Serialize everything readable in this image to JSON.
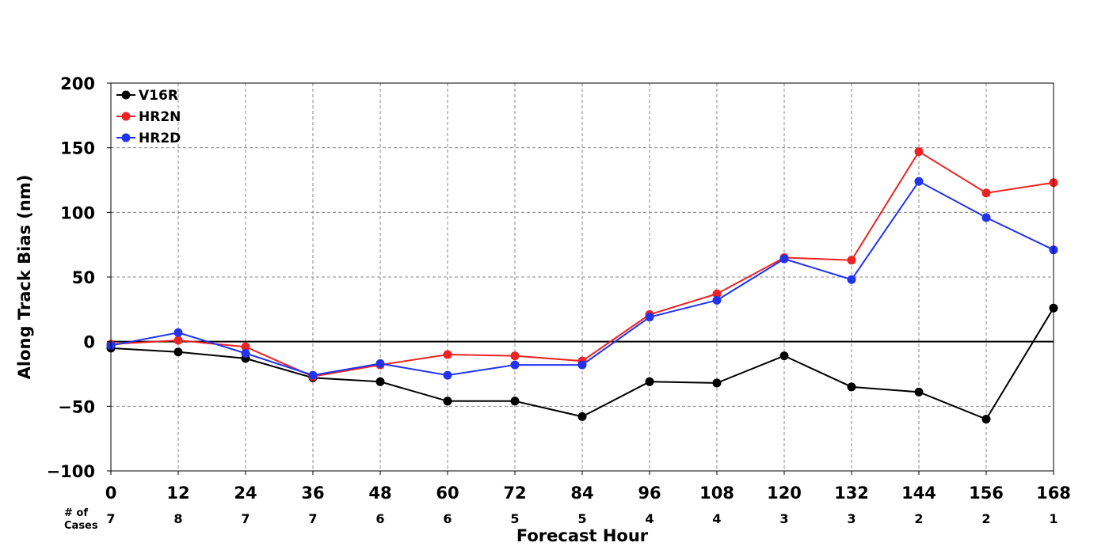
{
  "chart_data": {
    "type": "line",
    "title": "",
    "xlabel": "Forecast Hour",
    "ylabel": "Along Track Bias (nm)",
    "x": [
      0,
      12,
      24,
      36,
      48,
      60,
      72,
      84,
      96,
      108,
      120,
      132,
      144,
      156,
      168
    ],
    "x_tick_labels": [
      "0",
      "12",
      "24",
      "36",
      "48",
      "60",
      "72",
      "84",
      "96",
      "108",
      "120",
      "132",
      "144",
      "156",
      "168"
    ],
    "xlim": [
      0,
      168
    ],
    "ylim": [
      -100,
      200
    ],
    "y_ticks": [
      -100,
      -50,
      0,
      50,
      100,
      150,
      200
    ],
    "y_tick_labels": [
      "−100",
      "−50",
      "0",
      "50",
      "100",
      "150",
      "200"
    ],
    "grid": true,
    "legend_position": "top-left",
    "cases_label": [
      "# of",
      "Cases"
    ],
    "cases": [
      "7",
      "8",
      "7",
      "7",
      "6",
      "6",
      "5",
      "5",
      "4",
      "4",
      "3",
      "3",
      "2",
      "2",
      "1"
    ],
    "series": [
      {
        "name": "V16R",
        "color": "#000000",
        "values": [
          -5,
          -8,
          -13,
          -28,
          -31,
          -46,
          -46,
          -58,
          -31,
          -32,
          -11,
          -35,
          -39,
          -60,
          26
        ]
      },
      {
        "name": "HR2N",
        "color": "#ee2222",
        "values": [
          -2,
          1,
          -4,
          -27,
          -18,
          -10,
          -11,
          -15,
          21,
          37,
          65,
          63,
          147,
          115,
          123
        ]
      },
      {
        "name": "HR2D",
        "color": "#2233ee",
        "values": [
          -3,
          7,
          -9,
          -26,
          -17,
          -26,
          -18,
          -18,
          19,
          32,
          64,
          48,
          124,
          96,
          71
        ]
      }
    ]
  }
}
